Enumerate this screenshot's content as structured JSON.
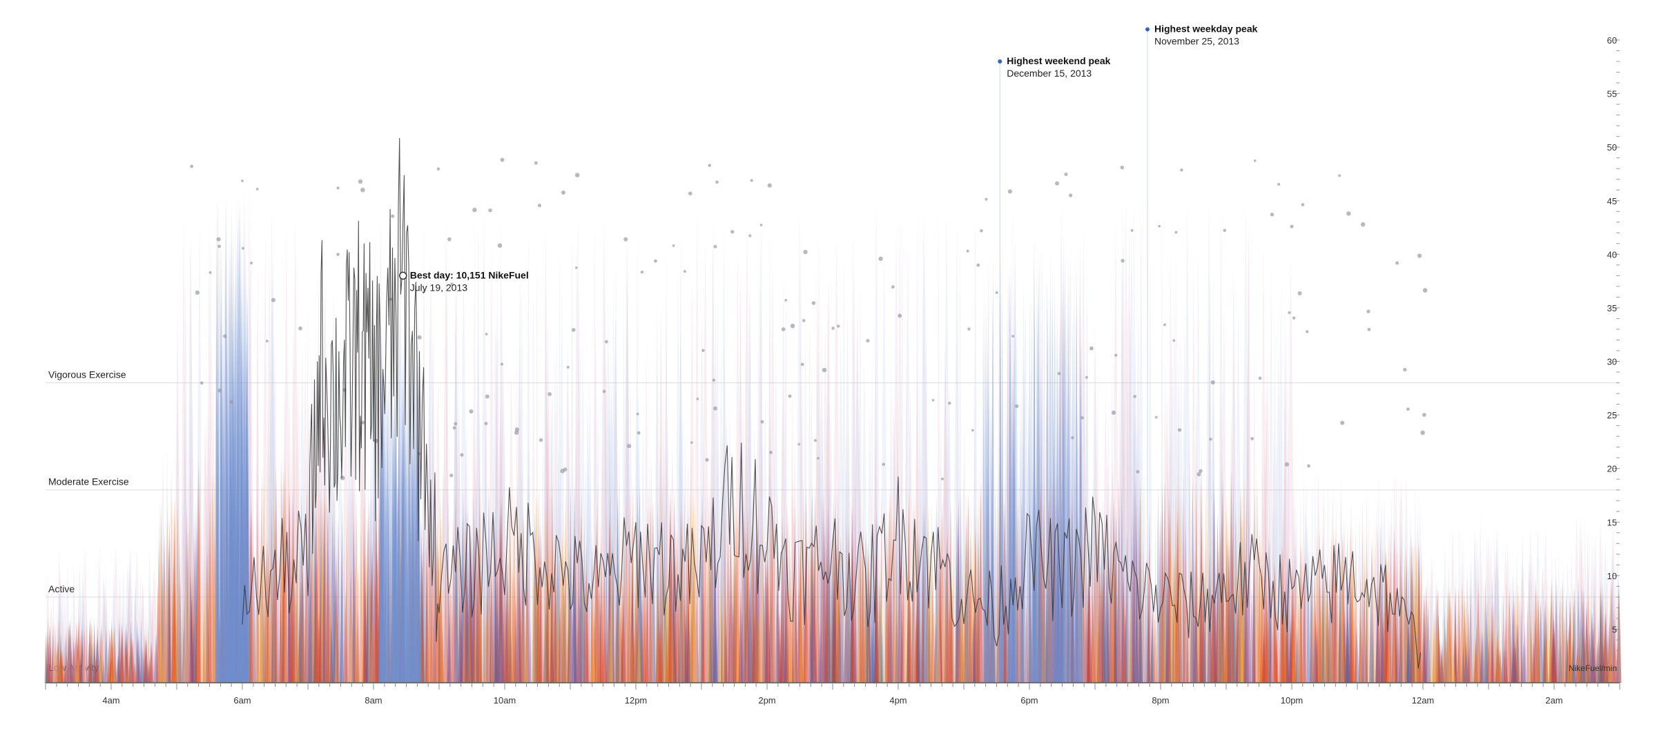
{
  "chart_data": {
    "type": "area",
    "y_unit": "NikeFuel/min",
    "ylim": [
      0,
      60
    ],
    "y_ticks": [
      5,
      10,
      15,
      20,
      25,
      30,
      35,
      40,
      45,
      50,
      55,
      60
    ],
    "x_range_hours": [
      3.0,
      27.0
    ],
    "x_ticks": [
      {
        "hour": 4,
        "label": "4am"
      },
      {
        "hour": 6,
        "label": "6am"
      },
      {
        "hour": 8,
        "label": "8am"
      },
      {
        "hour": 10,
        "label": "10am"
      },
      {
        "hour": 12,
        "label": "12pm"
      },
      {
        "hour": 14,
        "label": "2pm"
      },
      {
        "hour": 16,
        "label": "4pm"
      },
      {
        "hour": 18,
        "label": "6pm"
      },
      {
        "hour": 20,
        "label": "8pm"
      },
      {
        "hour": 22,
        "label": "10pm"
      },
      {
        "hour": 24,
        "label": "12am"
      },
      {
        "hour": 26,
        "label": "2am"
      }
    ],
    "activity_bands": [
      {
        "label": "Vigorous Exercise",
        "value": 28
      },
      {
        "label": "Moderate Exercise",
        "value": 18
      },
      {
        "label": "Active",
        "value": 8
      },
      {
        "label": "Low Activity",
        "value": 1
      }
    ],
    "annotations": {
      "best_day": {
        "title": "Best day: 10,151 NikeFuel",
        "date": "July 19, 2013",
        "hour": 8.45,
        "value": 38
      },
      "weekend_peak": {
        "title": "Highest weekend peak",
        "date": "December 15, 2013",
        "hour": 17.55,
        "value": 58
      },
      "weekday_peak": {
        "title": "Highest weekday peak",
        "date": "November 25, 2013",
        "hour": 19.8,
        "value": 61
      }
    },
    "best_day_series": {
      "hours": [
        6.0,
        6.5,
        7.0,
        7.2,
        7.4,
        7.6,
        7.8,
        8.0,
        8.2,
        8.45,
        8.7,
        9.0,
        9.5,
        10.0,
        10.5,
        11.0,
        11.5,
        12.0,
        12.5,
        13.0,
        13.5,
        14.0,
        14.5,
        15.0,
        15.5,
        16.0,
        16.5,
        17.0,
        17.5,
        18.0,
        18.5,
        19.0,
        19.5,
        20.0,
        20.5,
        21.0,
        21.5,
        22.0,
        22.5,
        23.0,
        23.5,
        24.0
      ],
      "values": [
        8,
        10,
        12,
        30,
        26,
        28,
        31,
        27,
        29,
        38,
        26,
        9,
        11,
        13,
        12,
        10,
        9,
        12,
        11,
        10,
        18,
        14,
        10,
        12,
        9,
        14,
        12,
        8,
        7,
        12,
        10,
        13,
        9,
        8,
        7,
        9,
        10,
        8,
        9,
        10,
        8,
        3
      ]
    },
    "palette": [
      "#e8491e",
      "#f06a20",
      "#d9371c",
      "#f59a2a",
      "#f7c04a",
      "#7a4f8c",
      "#5a5ea8",
      "#3b63b5",
      "#b54a6e",
      "#e4a0b4"
    ],
    "weekend_color": "#6f8fd0",
    "best_day_color": "#333333"
  }
}
